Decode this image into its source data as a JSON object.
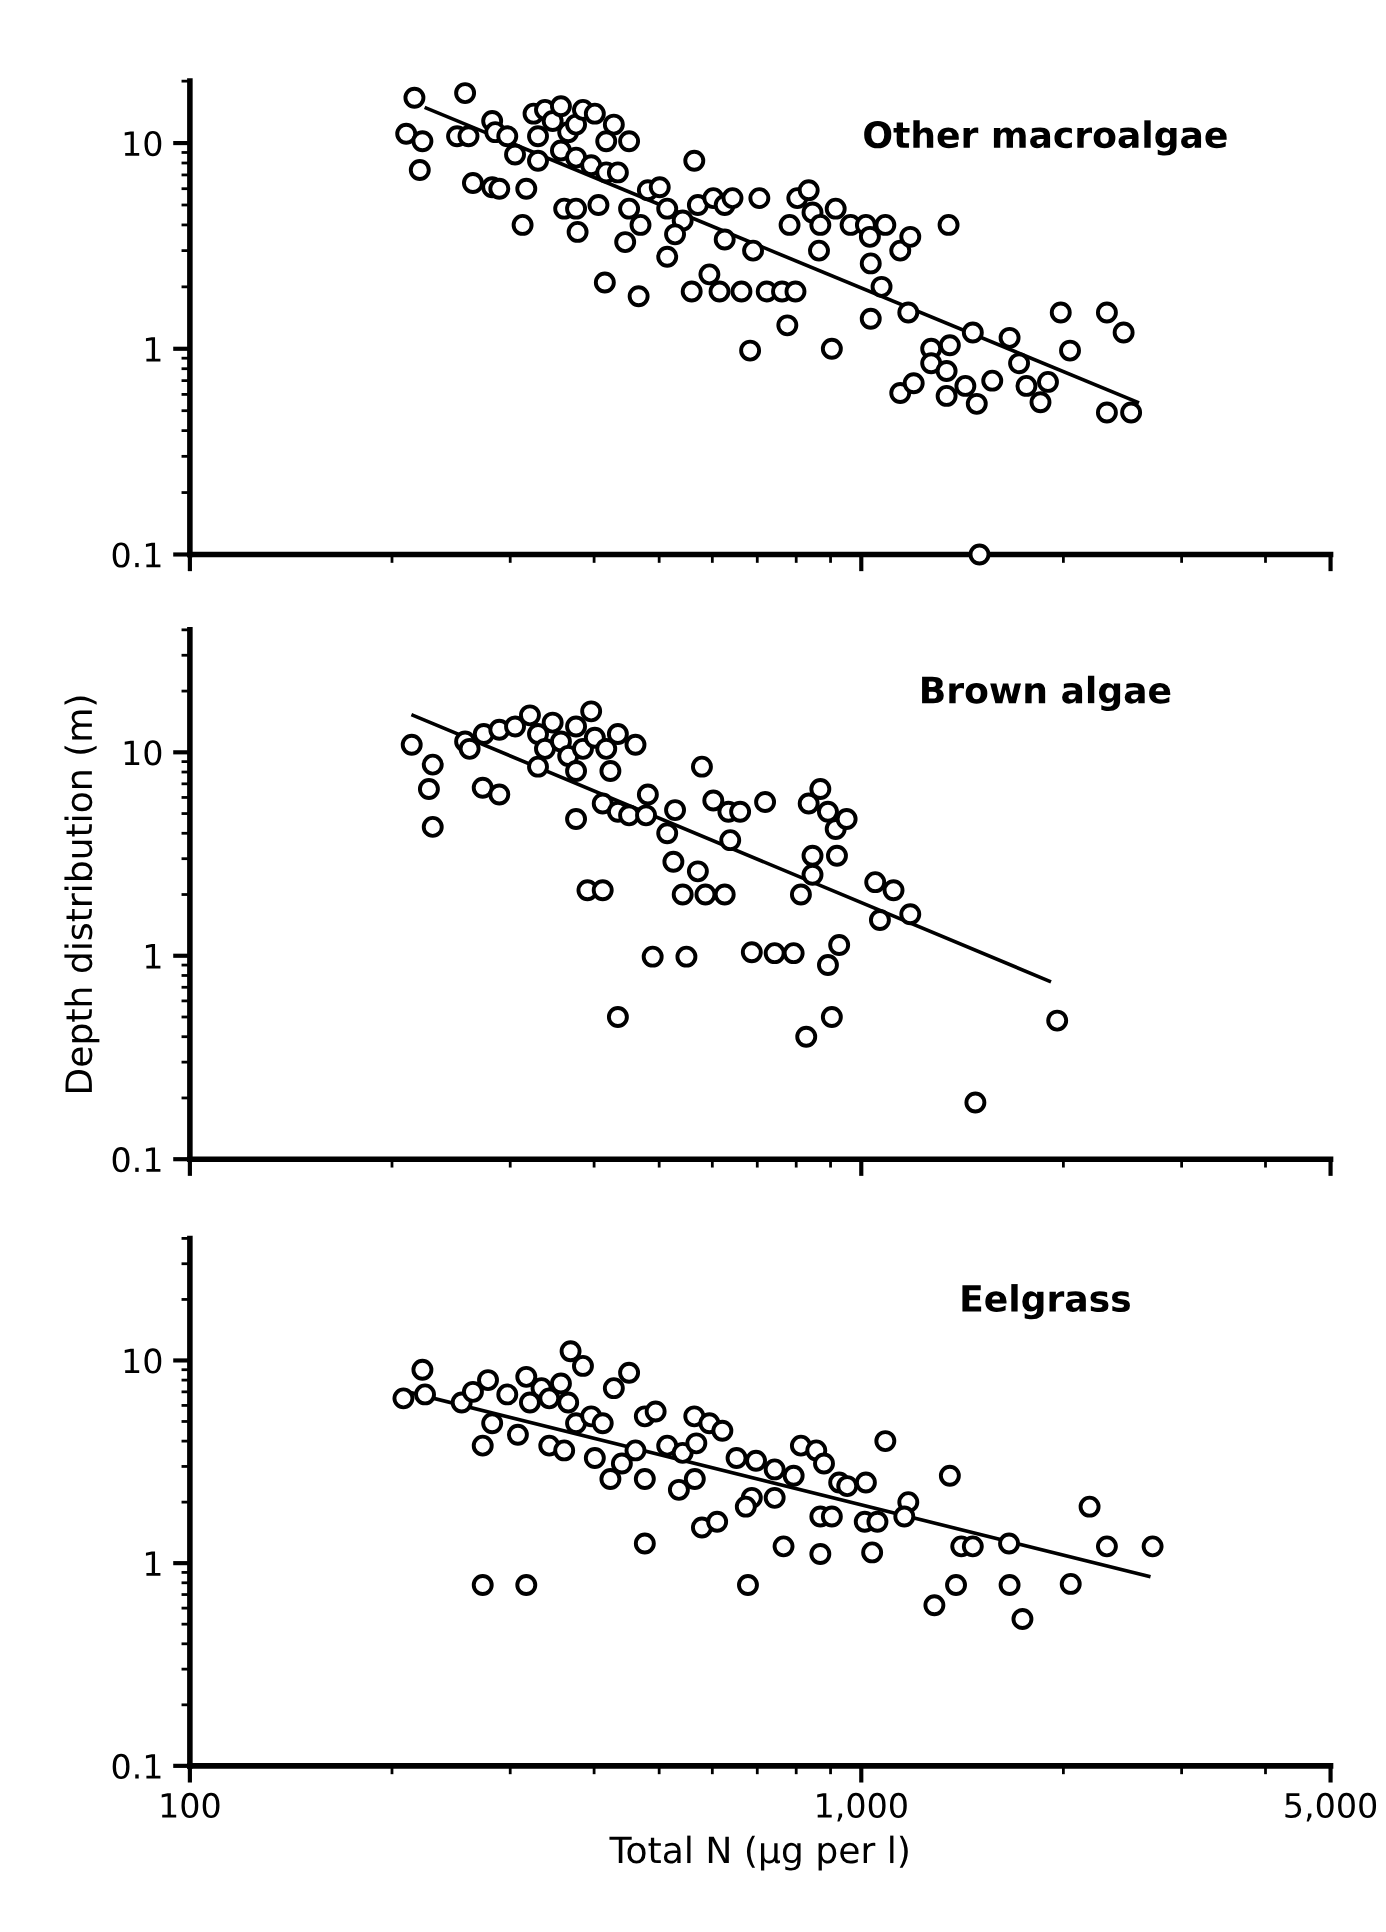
{
  "chart_data": [
    {
      "type": "scatter",
      "annotations": [
        "Other macroalgae"
      ],
      "xlim": [
        100,
        5000
      ],
      "ylim": [
        0.1,
        20
      ],
      "yticks": [
        10,
        1,
        0.1
      ],
      "xticks": [
        {
          "value": 100,
          "label": null
        },
        {
          "value": 1000,
          "label": null
        },
        {
          "value": 5000,
          "label": null
        }
      ],
      "log": "xy",
      "tick_labels": "y",
      "grid": false,
      "legend": false,
      "series": [
        {
          "marker": "circle",
          "color": "#000000",
          "x": [
            216,
            257,
            210,
            222,
            220,
            250,
            260,
            264,
            282,
            289,
            317,
            313,
            282,
            285,
            297,
            305,
            325,
            330,
            338,
            347,
            357,
            366,
            376,
            385,
            401,
            330,
            357,
            376,
            396,
            417,
            428,
            451,
            417,
            434,
            361,
            376,
            378,
            406,
            451,
            469,
            481,
            501,
            514,
            542,
            528,
            514,
            445,
            564,
            571,
            602,
            626,
            643,
            705,
            626,
            690,
            415,
            466,
            559,
            594,
            615,
            663,
            723,
            762,
            798,
            776,
            683,
            904,
            803,
            835,
            846,
            782,
            869,
            916,
            964,
            1016,
            1086,
            1030,
            1033,
            1143,
            1183,
            865,
            1072,
            1033,
            1175,
            1349,
            1271,
            1355,
            1466,
            1271,
            1340,
            1143,
            1197,
            1340,
            1429,
            1486,
            1567,
            1663,
            1718,
            1762,
            1849,
            1897,
            1982,
            2322,
            2459,
            2046,
            2322,
            2523,
            1500
          ],
          "values": [
            16.6,
            17.5,
            11.1,
            10.2,
            7.4,
            10.8,
            10.8,
            6.4,
            6.1,
            6.0,
            6.0,
            4.0,
            12.8,
            11.3,
            10.8,
            8.8,
            13.9,
            10.8,
            14.5,
            12.8,
            15.1,
            11.3,
            12.3,
            14.5,
            13.9,
            8.2,
            9.2,
            8.5,
            7.8,
            10.2,
            12.3,
            10.2,
            7.2,
            7.2,
            4.8,
            4.8,
            3.7,
            5.0,
            4.8,
            4.0,
            5.9,
            6.1,
            4.8,
            4.2,
            3.6,
            2.8,
            3.3,
            8.2,
            5.0,
            5.4,
            5.0,
            5.4,
            5.4,
            3.4,
            3.0,
            2.1,
            1.8,
            1.9,
            2.3,
            1.9,
            1.9,
            1.9,
            1.9,
            1.9,
            1.3,
            0.98,
            1.0,
            5.4,
            5.9,
            4.6,
            4.0,
            4.0,
            4.8,
            4.0,
            4.0,
            4.0,
            3.5,
            2.6,
            3.0,
            3.5,
            3.0,
            2.0,
            1.4,
            1.5,
            4.0,
            1.0,
            1.04,
            1.2,
            0.85,
            0.78,
            0.61,
            0.68,
            0.59,
            0.66,
            0.54,
            0.7,
            1.13,
            0.85,
            0.66,
            0.55,
            0.69,
            1.5,
            1.5,
            1.2,
            0.98,
            0.49,
            0.49,
            0.1
          ]
        },
        {
          "type": "line",
          "color": "#000000",
          "x": [
            225,
            2578
          ],
          "values": [
            14.8,
            0.55
          ]
        }
      ]
    },
    {
      "type": "scatter",
      "ylabel": "Depth distribution (m)",
      "annotations": [
        "Brown algae"
      ],
      "xlim": [
        100,
        5000
      ],
      "ylim": [
        0.1,
        40
      ],
      "yticks": [
        10,
        1,
        0.1
      ],
      "xticks": [
        {
          "value": 100,
          "label": null
        },
        {
          "value": 1000,
          "label": null
        },
        {
          "value": 5000,
          "label": null
        }
      ],
      "log": "xy",
      "tick_labels": "y",
      "grid": false,
      "legend": false,
      "series": [
        {
          "marker": "circle",
          "color": "#000000",
          "x": [
            214,
            230,
            227,
            230,
            257,
            261,
            273,
            289,
            274,
            289,
            305,
            321,
            330,
            338,
            347,
            357,
            366,
            376,
            385,
            396,
            401,
            417,
            434,
            461,
            423,
            330,
            376,
            376,
            412,
            434,
            451,
            481,
            478,
            514,
            528,
            579,
            602,
            634,
            660,
            719,
            638,
            525,
            571,
            391,
            412,
            542,
            586,
            626,
            813,
            835,
            869,
            892,
            916,
            951,
            846,
            920,
            846,
            1049,
            1117,
            1066,
            1183,
            489,
            549,
            687,
            743,
            793,
            927,
            892,
            434,
            828,
            904,
            1958,
            1479
          ],
          "values": [
            10.9,
            8.7,
            6.6,
            4.3,
            11.3,
            10.4,
            6.7,
            6.2,
            12.3,
            12.9,
            13.4,
            15.2,
            12.3,
            10.4,
            14.0,
            11.3,
            9.6,
            13.4,
            10.4,
            15.9,
            11.8,
            10.4,
            12.3,
            10.9,
            8.1,
            8.5,
            8.1,
            4.7,
            5.6,
            5.1,
            4.9,
            6.2,
            4.9,
            4.0,
            5.2,
            8.5,
            5.8,
            5.1,
            5.1,
            5.7,
            3.7,
            2.9,
            2.6,
            2.1,
            2.1,
            2.0,
            2.0,
            2.0,
            2.0,
            5.6,
            6.6,
            5.1,
            4.2,
            4.7,
            3.1,
            3.1,
            2.5,
            2.3,
            2.1,
            1.5,
            1.6,
            0.99,
            0.99,
            1.04,
            1.03,
            1.03,
            1.13,
            0.9,
            0.5,
            0.4,
            0.5,
            0.48,
            0.19
          ]
        },
        {
          "type": "line",
          "color": "#000000",
          "x": [
            215,
            1906
          ],
          "values": [
            15.2,
            0.75
          ]
        }
      ]
    },
    {
      "type": "scatter",
      "xlabel": "Total N (µg per l)",
      "annotations": [
        "Eelgrass"
      ],
      "xlim": [
        100,
        5000
      ],
      "ylim": [
        0.1,
        40
      ],
      "yticks": [
        10,
        1,
        0.1
      ],
      "xticks": [
        100,
        {
          "value": 1000,
          "label": "1,000"
        },
        {
          "value": 5000,
          "label": "5,000"
        }
      ],
      "log": "xy",
      "grid": false,
      "legend": false,
      "series": [
        {
          "marker": "circle",
          "color": "#000000",
          "x": [
            208,
            222,
            224,
            254,
            264,
            278,
            282,
            273,
            297,
            317,
            308,
            321,
            334,
            343,
            357,
            366,
            369,
            385,
            343,
            361,
            376,
            396,
            412,
            428,
            451,
            401,
            423,
            440,
            461,
            476,
            476,
            494,
            514,
            535,
            542,
            564,
            568,
            565,
            594,
            621,
            652,
            697,
            743,
            793,
            813,
            857,
            880,
            743,
            687,
            673,
            579,
            610,
            927,
            953,
            1016,
            1086,
            1175,
            1159,
            869,
            904,
            1012,
            1057,
            1355,
            476,
            766,
            869,
            1038,
            1409,
            1466,
            1660,
            2188,
            2322,
            2716,
            273,
            317,
            678,
            1285,
            1384,
            1663,
            1738,
            2051
          ],
          "values": [
            6.5,
            9.0,
            6.8,
            6.2,
            7.0,
            8.0,
            4.9,
            3.8,
            6.8,
            8.3,
            4.3,
            6.2,
            7.3,
            6.5,
            7.7,
            6.2,
            11.1,
            9.4,
            3.8,
            3.6,
            4.9,
            5.3,
            4.9,
            7.3,
            8.7,
            3.3,
            2.6,
            3.1,
            3.6,
            2.6,
            5.3,
            5.6,
            3.8,
            2.3,
            3.5,
            5.3,
            3.9,
            2.6,
            4.9,
            4.5,
            3.3,
            3.2,
            2.9,
            2.7,
            3.8,
            3.6,
            3.1,
            2.1,
            2.1,
            1.9,
            1.5,
            1.6,
            2.5,
            2.4,
            2.5,
            4.0,
            2.0,
            1.7,
            1.7,
            1.7,
            1.6,
            1.6,
            2.7,
            1.25,
            1.21,
            1.11,
            1.13,
            1.21,
            1.21,
            1.25,
            1.9,
            1.21,
            1.21,
            0.78,
            0.78,
            0.78,
            0.62,
            0.78,
            0.78,
            0.53,
            0.79
          ]
        },
        {
          "type": "line",
          "color": "#000000",
          "x": [
            211,
            2680
          ],
          "values": [
            7.0,
            0.86
          ]
        }
      ]
    }
  ]
}
